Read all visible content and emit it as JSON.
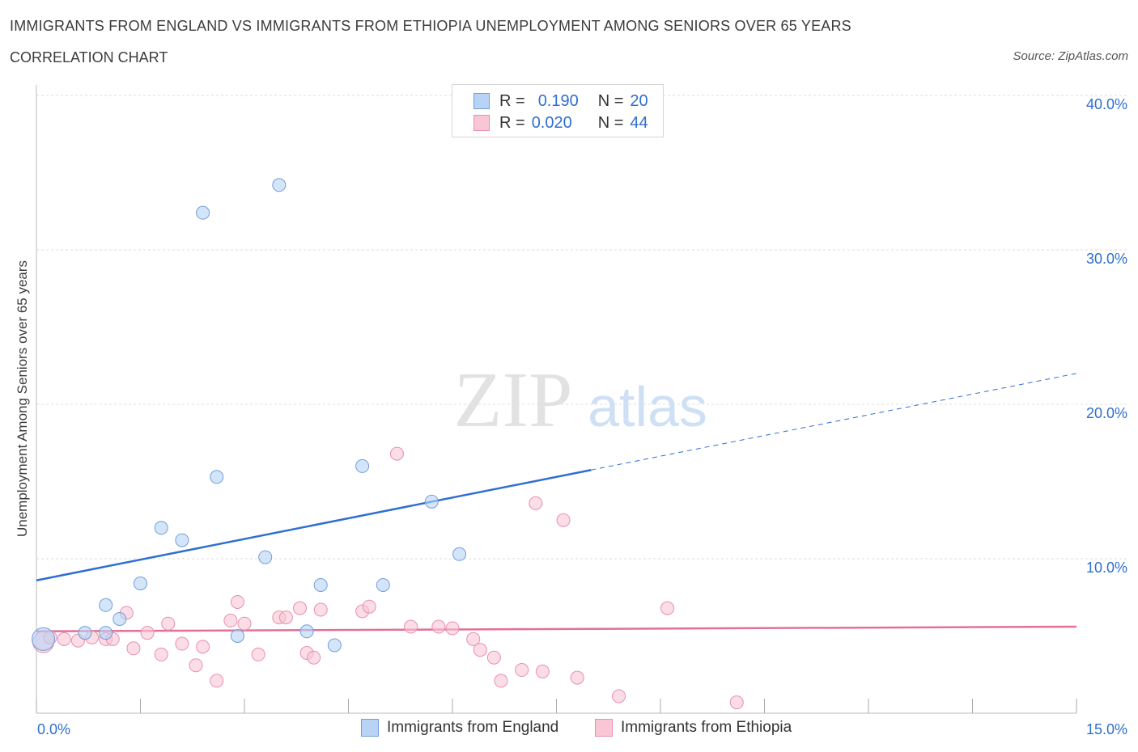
{
  "header": {
    "title": "IMMIGRANTS FROM ENGLAND VS IMMIGRANTS FROM ETHIOPIA UNEMPLOYMENT AMONG SENIORS OVER 65 YEARS",
    "subtitle": "CORRELATION CHART",
    "source": "Source: ZipAtlas.com"
  },
  "legend_top": {
    "rows": [
      {
        "r_label": "R =",
        "r_value": "0.190",
        "n_label": "N =",
        "n_value": "20"
      },
      {
        "r_label": "R =",
        "r_value": "0.020",
        "n_label": "N =",
        "n_value": "44"
      }
    ]
  },
  "watermark": {
    "zip": "ZIP",
    "atlas": "atlas"
  },
  "colors": {
    "england_fill": "#b8d3f5",
    "england_stroke": "#6f9fdc",
    "england_line": "#2f6fd0",
    "ethiopia_fill": "#f9c6d6",
    "ethiopia_stroke": "#e98fae",
    "ethiopia_line": "#e2709a",
    "axis_text": "#2f6fd0",
    "grid": "#dddddd"
  },
  "chart_data": {
    "type": "scatter",
    "title": "IMMIGRANTS FROM ENGLAND VS IMMIGRANTS FROM ETHIOPIA UNEMPLOYMENT AMONG SENIORS OVER 65 YEARS",
    "xlabel": "",
    "ylabel": "Unemployment Among Seniors over 65 years",
    "xlim": [
      0,
      15
    ],
    "ylim": [
      0,
      40
    ],
    "x_tick_labels": [
      "0.0%",
      "15.0%"
    ],
    "y_tick_labels": [
      "10.0%",
      "20.0%",
      "30.0%",
      "40.0%"
    ],
    "y_ticks": [
      10,
      20,
      30,
      40
    ],
    "grid": true,
    "series": [
      {
        "name": "Immigrants from England",
        "r": 0.19,
        "n": 20,
        "trend": {
          "x_start": 0,
          "y_start": 8.6,
          "x_solid_end": 8.0,
          "x_end": 15,
          "y_end": 22.0
        },
        "points": [
          {
            "x": 0.1,
            "y": 4.8,
            "big": true
          },
          {
            "x": 0.7,
            "y": 5.2
          },
          {
            "x": 1.0,
            "y": 5.2
          },
          {
            "x": 1.0,
            "y": 7.0
          },
          {
            "x": 1.2,
            "y": 6.1
          },
          {
            "x": 1.5,
            "y": 8.4
          },
          {
            "x": 1.8,
            "y": 12.0
          },
          {
            "x": 2.1,
            "y": 11.2
          },
          {
            "x": 2.4,
            "y": 32.4
          },
          {
            "x": 2.6,
            "y": 15.3
          },
          {
            "x": 2.9,
            "y": 5.0
          },
          {
            "x": 3.3,
            "y": 10.1
          },
          {
            "x": 3.5,
            "y": 34.2
          },
          {
            "x": 3.9,
            "y": 5.3
          },
          {
            "x": 4.1,
            "y": 8.3
          },
          {
            "x": 4.3,
            "y": 4.4
          },
          {
            "x": 4.7,
            "y": 16.0
          },
          {
            "x": 5.0,
            "y": 8.3
          },
          {
            "x": 5.7,
            "y": 13.7
          },
          {
            "x": 6.1,
            "y": 10.3
          }
        ]
      },
      {
        "name": "Immigrants from Ethiopia",
        "r": 0.02,
        "n": 44,
        "trend": {
          "x_start": 0,
          "y_start": 5.3,
          "x_end": 15,
          "y_end": 5.6
        },
        "points": [
          {
            "x": 0.1,
            "y": 4.6,
            "big": true
          },
          {
            "x": 0.2,
            "y": 4.9
          },
          {
            "x": 0.4,
            "y": 4.8
          },
          {
            "x": 0.6,
            "y": 4.7
          },
          {
            "x": 0.8,
            "y": 4.9
          },
          {
            "x": 1.0,
            "y": 4.8
          },
          {
            "x": 1.1,
            "y": 4.8
          },
          {
            "x": 1.3,
            "y": 6.5
          },
          {
            "x": 1.4,
            "y": 4.2
          },
          {
            "x": 1.6,
            "y": 5.2
          },
          {
            "x": 1.8,
            "y": 3.8
          },
          {
            "x": 1.9,
            "y": 5.8
          },
          {
            "x": 2.1,
            "y": 4.5
          },
          {
            "x": 2.3,
            "y": 3.1
          },
          {
            "x": 2.4,
            "y": 4.3
          },
          {
            "x": 2.6,
            "y": 2.1
          },
          {
            "x": 2.8,
            "y": 6.0
          },
          {
            "x": 2.9,
            "y": 7.2
          },
          {
            "x": 3.0,
            "y": 5.8
          },
          {
            "x": 3.2,
            "y": 3.8
          },
          {
            "x": 3.5,
            "y": 6.2
          },
          {
            "x": 3.6,
            "y": 6.2
          },
          {
            "x": 3.8,
            "y": 6.8
          },
          {
            "x": 3.9,
            "y": 3.9
          },
          {
            "x": 4.0,
            "y": 3.6
          },
          {
            "x": 4.1,
            "y": 6.7
          },
          {
            "x": 4.7,
            "y": 6.6
          },
          {
            "x": 4.8,
            "y": 6.9
          },
          {
            "x": 5.2,
            "y": 16.8
          },
          {
            "x": 5.4,
            "y": 5.6
          },
          {
            "x": 5.8,
            "y": 5.6
          },
          {
            "x": 6.0,
            "y": 5.5
          },
          {
            "x": 6.3,
            "y": 4.8
          },
          {
            "x": 6.4,
            "y": 4.1
          },
          {
            "x": 6.6,
            "y": 3.6
          },
          {
            "x": 6.7,
            "y": 2.1
          },
          {
            "x": 7.0,
            "y": 2.8
          },
          {
            "x": 7.2,
            "y": 13.6
          },
          {
            "x": 7.3,
            "y": 2.7
          },
          {
            "x": 7.6,
            "y": 12.5
          },
          {
            "x": 7.8,
            "y": 2.3
          },
          {
            "x": 8.4,
            "y": 1.1
          },
          {
            "x": 9.1,
            "y": 6.8
          },
          {
            "x": 10.1,
            "y": 0.7
          }
        ]
      }
    ]
  },
  "bottom_legend": {
    "items": [
      {
        "label": "Immigrants from England"
      },
      {
        "label": "Immigrants from Ethiopia"
      }
    ]
  }
}
